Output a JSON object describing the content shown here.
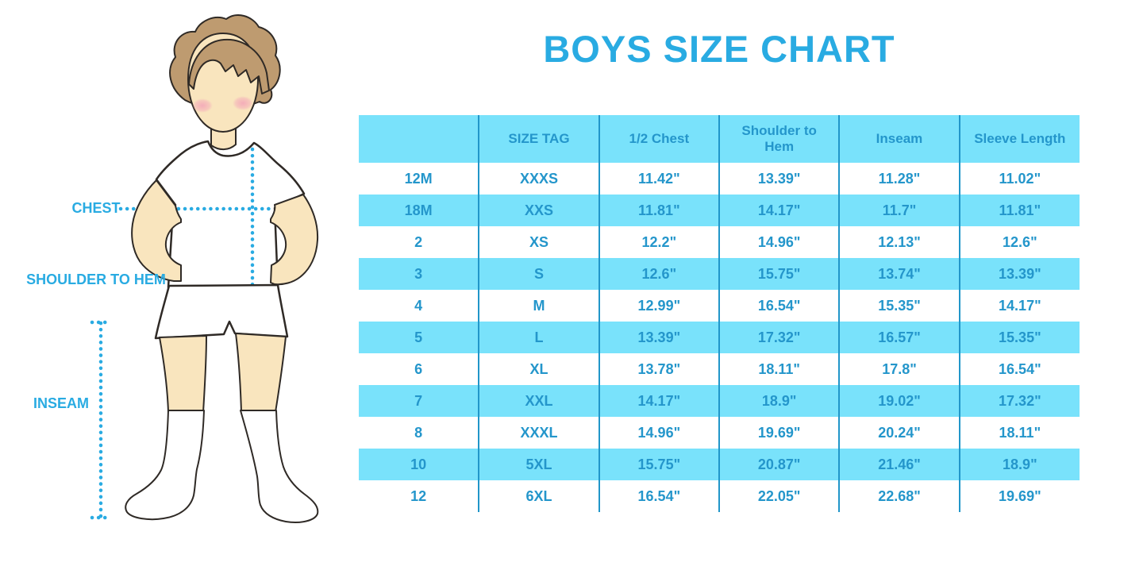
{
  "title": "BOYS SIZE CHART",
  "figure": {
    "labels": {
      "chest": "CHEST",
      "shoulder_to_hem": "SHOULDER TO HEM",
      "inseam": "INSEAM"
    }
  },
  "colors": {
    "accent_blue": "#29ABE2",
    "table_text_blue": "#2496CB",
    "row_highlight_blue": "#79E2FB",
    "divider_blue": "#2196C9",
    "skin": "#F9E5BE",
    "hair": "#BE9B70",
    "outline": "#2F2A26",
    "blush": "#F3A3B8"
  },
  "chart_data": {
    "type": "table",
    "title": "BOYS SIZE CHART",
    "columns": [
      "",
      "SIZE TAG",
      "1/2 Chest",
      "Shoulder to Hem",
      "Inseam",
      "Sleeve Length"
    ],
    "rows": [
      [
        "12M",
        "XXXS",
        "11.42\"",
        "13.39\"",
        "11.28\"",
        "11.02\""
      ],
      [
        "18M",
        "XXS",
        "11.81\"",
        "14.17\"",
        "11.7\"",
        "11.81\""
      ],
      [
        "2",
        "XS",
        "12.2\"",
        "14.96\"",
        "12.13\"",
        "12.6\""
      ],
      [
        "3",
        "S",
        "12.6\"",
        "15.75\"",
        "13.74\"",
        "13.39\""
      ],
      [
        "4",
        "M",
        "12.99\"",
        "16.54\"",
        "15.35\"",
        "14.17\""
      ],
      [
        "5",
        "L",
        "13.39\"",
        "17.32\"",
        "16.57\"",
        "15.35\""
      ],
      [
        "6",
        "XL",
        "13.78\"",
        "18.11\"",
        "17.8\"",
        "16.54\""
      ],
      [
        "7",
        "XXL",
        "14.17\"",
        "18.9\"",
        "19.02\"",
        "17.32\""
      ],
      [
        "8",
        "XXXL",
        "14.96\"",
        "19.69\"",
        "20.24\"",
        "18.11\""
      ],
      [
        "10",
        "5XL",
        "15.75\"",
        "20.87\"",
        "21.46\"",
        "18.9\""
      ],
      [
        "12",
        "6XL",
        "16.54\"",
        "22.05\"",
        "22.68\"",
        "19.69\""
      ]
    ]
  }
}
